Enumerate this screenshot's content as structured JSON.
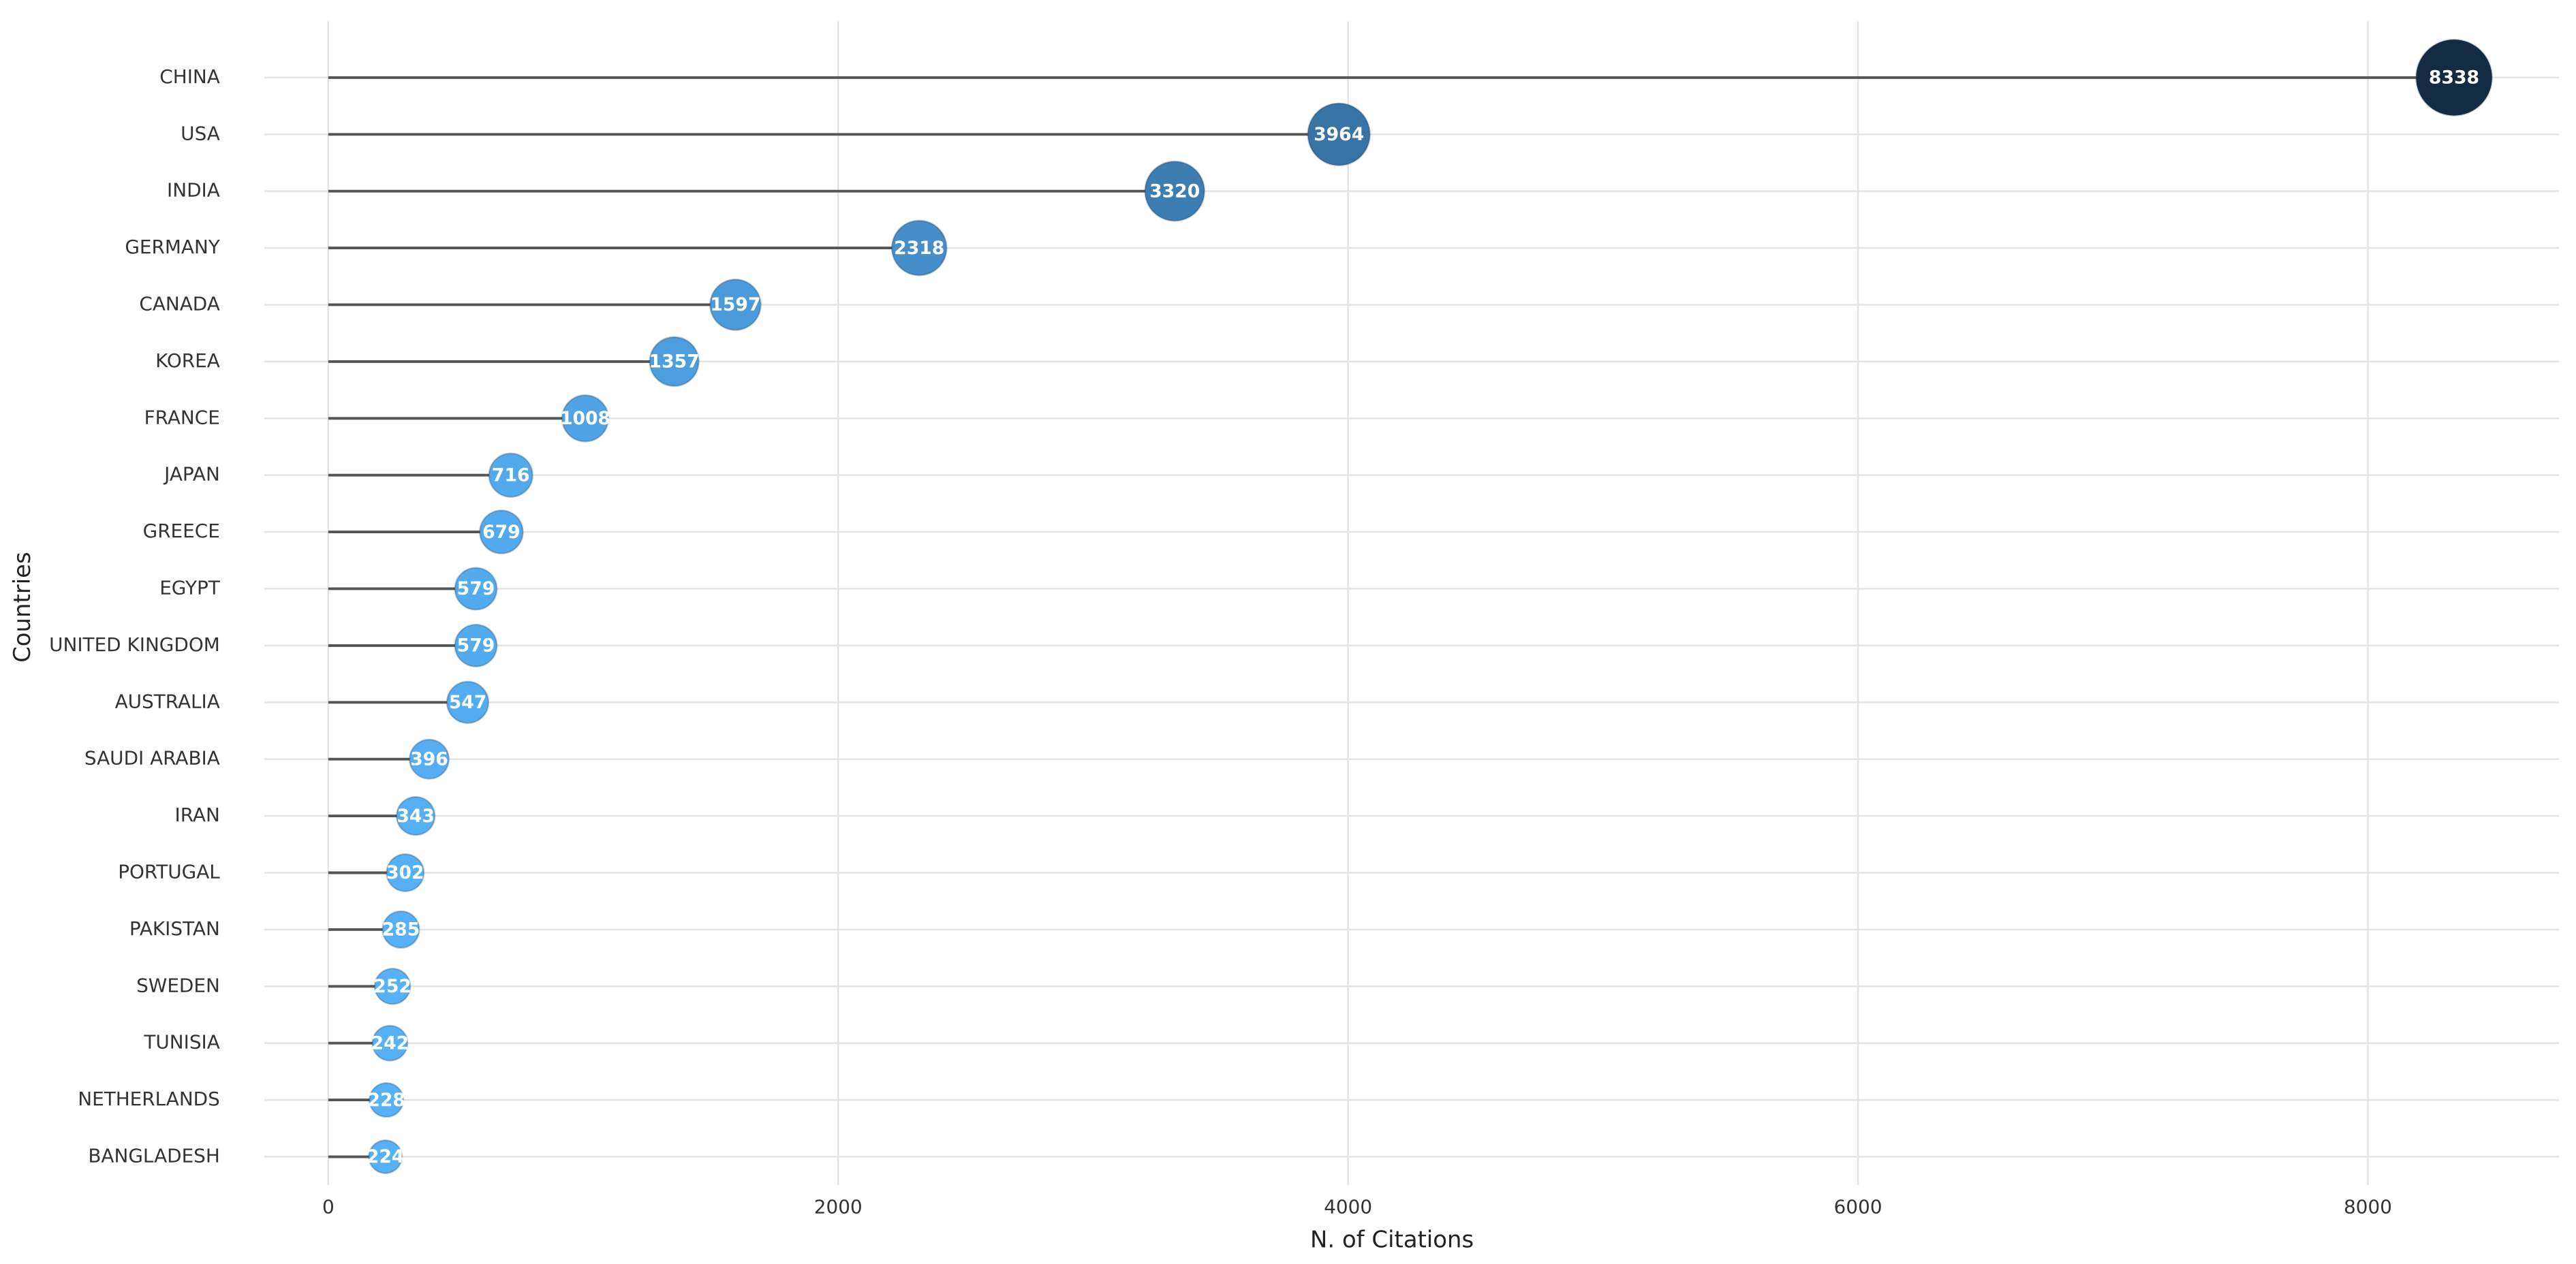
{
  "chart_data": {
    "type": "lollipop",
    "x_label": "N. of Citations",
    "y_label": "Countries",
    "categories": [
      "CHINA",
      "USA",
      "INDIA",
      "GERMANY",
      "CANADA",
      "KOREA",
      "FRANCE",
      "JAPAN",
      "GREECE",
      "EGYPT",
      "UNITED KINGDOM",
      "AUSTRALIA",
      "SAUDI ARABIA",
      "IRAN",
      "PORTUGAL",
      "PAKISTAN",
      "SWEDEN",
      "TUNISIA",
      "NETHERLANDS",
      "BANGLADESH"
    ],
    "values": [
      8338,
      3964,
      3320,
      2318,
      1597,
      1357,
      1008,
      716,
      679,
      579,
      579,
      547,
      396,
      343,
      302,
      285,
      252,
      242,
      228,
      224
    ],
    "xlim": [
      -250,
      8750
    ],
    "xticks": [
      0,
      2000,
      4000,
      6000,
      8000
    ],
    "color_low": "#56b1f7",
    "color_high": "#132b43",
    "stem_color": "#555555",
    "grid": true
  }
}
